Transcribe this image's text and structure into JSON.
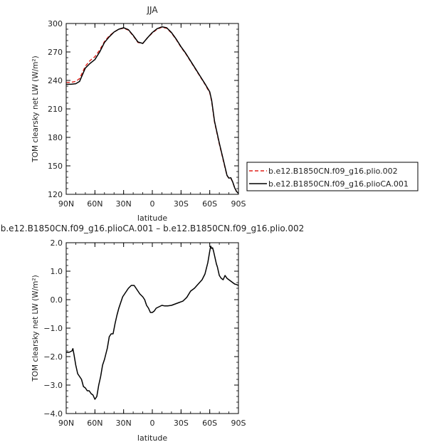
{
  "chart_data": [
    {
      "type": "line",
      "title": "JJA",
      "xlabel": "latitude",
      "ylabel": "TOM clearsky net LW (W/m²)",
      "xlim": [
        90,
        -90
      ],
      "ylim": [
        120,
        300
      ],
      "xticks": [
        90,
        60,
        30,
        0,
        -30,
        -60,
        -90
      ],
      "xtick_labels": [
        "90N",
        "60N",
        "30N",
        "0",
        "30S",
        "60S",
        "90S"
      ],
      "yticks": [
        120,
        150,
        180,
        210,
        240,
        270,
        300
      ],
      "ytick_labels": [
        "120",
        "150",
        "180",
        "210",
        "240",
        "270",
        "300"
      ],
      "legend_position": "right",
      "series": [
        {
          "name": "b.e12.B1850CN.f09_g16.plio.002",
          "color": "#e0201a",
          "dash": "dashed",
          "x": [
            90,
            85,
            80,
            76,
            70,
            65,
            60,
            55,
            50,
            45,
            40,
            35,
            30,
            25,
            20,
            15,
            10,
            5,
            0,
            -5,
            -10,
            -15,
            -20,
            -25,
            -30,
            -35,
            -40,
            -45,
            -50,
            -55,
            -60,
            -62,
            -65,
            -70,
            -75,
            -78,
            -80,
            -82,
            -84,
            -86,
            -88,
            -90
          ],
          "y": [
            238,
            238,
            239,
            242,
            255,
            261,
            265,
            272,
            281,
            287,
            291,
            294,
            295,
            293,
            287,
            280,
            279,
            285,
            290,
            294,
            296,
            295,
            290,
            283,
            275,
            268,
            260,
            252,
            244,
            236,
            227,
            218,
            196,
            173,
            152,
            140,
            137,
            137,
            133,
            127,
            123,
            121
          ]
        },
        {
          "name": "b.e12.B1850CN.f09_g16.plioCA.001",
          "color": "#000000",
          "dash": "solid",
          "x": [
            90,
            85,
            80,
            76,
            70,
            65,
            60,
            55,
            50,
            45,
            40,
            35,
            30,
            25,
            20,
            15,
            10,
            5,
            0,
            -5,
            -10,
            -15,
            -20,
            -25,
            -30,
            -35,
            -40,
            -45,
            -50,
            -55,
            -60,
            -62,
            -65,
            -70,
            -75,
            -78,
            -80,
            -82,
            -84,
            -86,
            -88,
            -90
          ],
          "y": [
            236,
            236,
            236.5,
            239,
            253,
            258,
            262,
            270,
            280,
            286,
            291,
            294,
            295.5,
            293.5,
            287.5,
            280.5,
            279,
            285,
            290.5,
            294.5,
            296.5,
            295.5,
            290.5,
            283.5,
            275.5,
            268.5,
            260.5,
            252.5,
            244.5,
            236.5,
            228,
            219,
            197,
            174,
            153,
            140,
            137,
            137.5,
            133,
            127,
            123,
            121
          ]
        }
      ]
    },
    {
      "type": "line",
      "title": "b.e12.B1850CN.f09_g16.plioCA.001 – b.e12.B1850CN.f09_g16.plio.002",
      "xlabel": "latitude",
      "ylabel": "TOM clearsky net LW (W/m²)",
      "xlim": [
        90,
        -90
      ],
      "ylim": [
        -4,
        2
      ],
      "xticks": [
        90,
        60,
        30,
        0,
        -30,
        -60,
        -90
      ],
      "xtick_labels": [
        "90N",
        "60N",
        "30N",
        "0",
        "30S",
        "60S",
        "90S"
      ],
      "yticks": [
        -4,
        -3,
        -2,
        -1,
        0,
        1,
        2
      ],
      "ytick_labels": [
        "−4.0",
        "−3.0",
        "−2.0",
        "−1.0",
        "0.0",
        "1.0",
        "2.0"
      ],
      "series": [
        {
          "color": "#000000",
          "dash": "solid",
          "x": [
            90,
            87,
            84,
            83,
            82,
            80,
            78,
            76,
            74,
            72,
            70,
            68,
            66,
            64,
            62,
            60,
            58,
            56,
            54,
            52,
            50,
            47,
            45,
            43,
            41,
            39,
            37,
            35,
            33,
            31,
            28,
            25,
            22,
            19,
            16,
            13,
            10,
            8,
            6,
            4,
            2,
            0,
            -2,
            -4,
            -7,
            -10,
            -13,
            -16,
            -20,
            -24,
            -28,
            -32,
            -36,
            -40,
            -44,
            -48,
            -52,
            -55,
            -58,
            -60,
            -61,
            -62,
            -63,
            -64,
            -65,
            -66,
            -67,
            -68,
            -69,
            -70,
            -72,
            -74,
            -76,
            -78,
            -80,
            -82,
            -84,
            -86,
            -88,
            -90
          ],
          "y": [
            -1.85,
            -1.85,
            -1.8,
            -1.72,
            -1.9,
            -2.3,
            -2.6,
            -2.7,
            -2.8,
            -3.05,
            -3.1,
            -3.2,
            -3.2,
            -3.3,
            -3.35,
            -3.5,
            -3.4,
            -3.0,
            -2.7,
            -2.3,
            -2.1,
            -1.7,
            -1.3,
            -1.2,
            -1.2,
            -0.85,
            -0.55,
            -0.3,
            -0.1,
            0.1,
            0.25,
            0.4,
            0.5,
            0.5,
            0.35,
            0.2,
            0.1,
            0.0,
            -0.2,
            -0.3,
            -0.45,
            -0.45,
            -0.4,
            -0.3,
            -0.25,
            -0.2,
            -0.22,
            -0.22,
            -0.2,
            -0.15,
            -0.1,
            -0.05,
            0.08,
            0.3,
            0.4,
            0.55,
            0.7,
            0.9,
            1.3,
            1.7,
            1.88,
            1.8,
            1.82,
            1.7,
            1.55,
            1.4,
            1.25,
            1.15,
            1.0,
            0.85,
            0.75,
            0.7,
            0.85,
            0.75,
            0.7,
            0.65,
            0.6,
            0.55,
            0.53,
            0.5
          ]
        }
      ]
    }
  ]
}
